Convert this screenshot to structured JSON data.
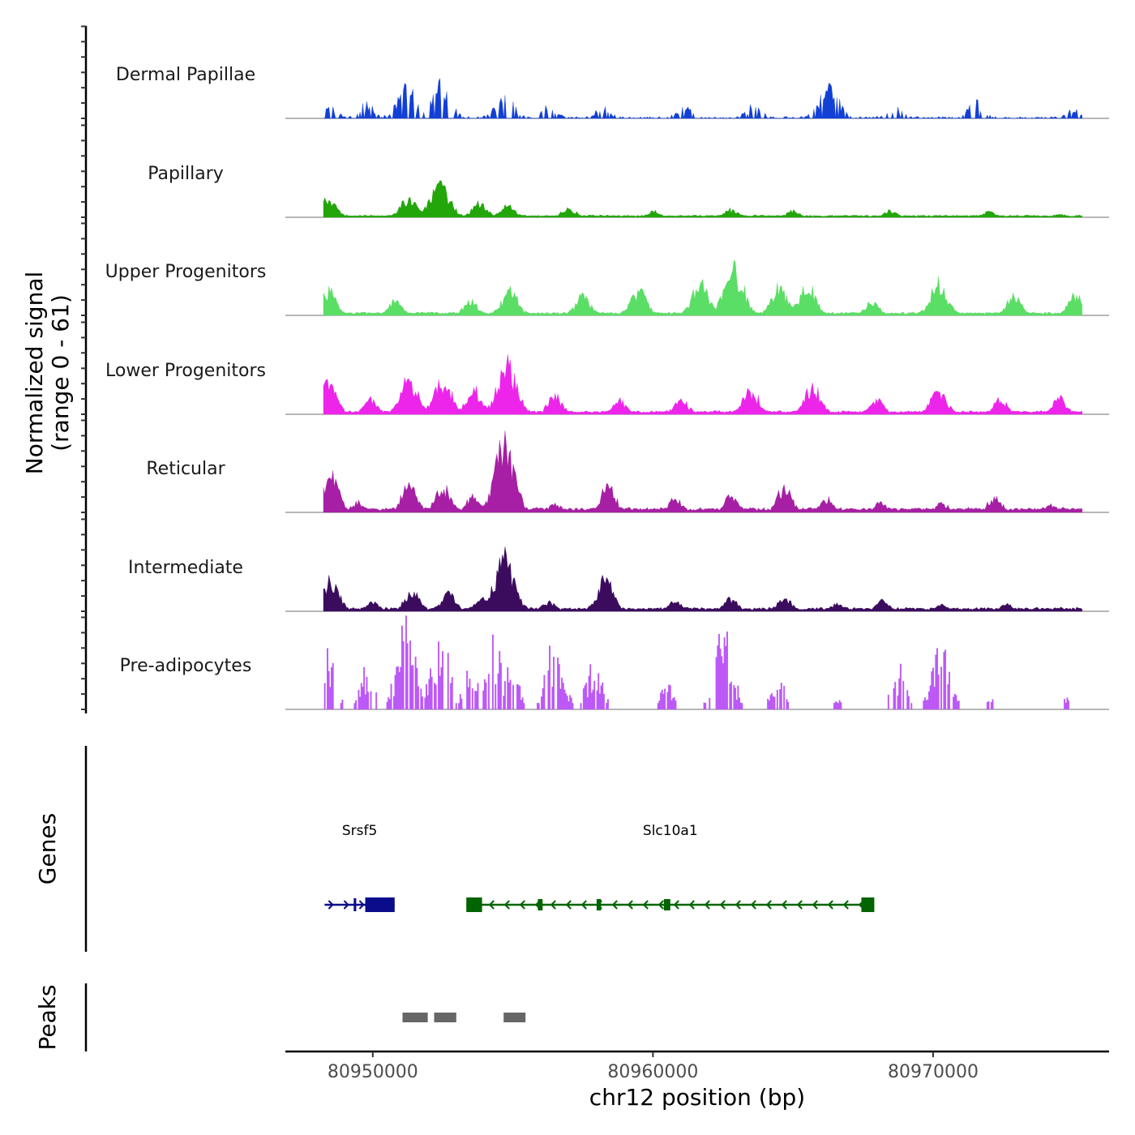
{
  "chart_data": {
    "type": "area",
    "title": "",
    "chromosome": "chr12",
    "xlabel": "chr12 position (bp)",
    "ylabel_line1": "Normalized signal",
    "ylabel_line2": "(range 0 - 61)",
    "ylim": [
      0,
      61
    ],
    "xlim": [
      80946880,
      80976280
    ],
    "data_range": [
      80948240,
      80975320
    ],
    "x_ticks": [
      80950000,
      80960000,
      80970000
    ],
    "x_tick_labels": [
      "80950000",
      "80960000",
      "80970000"
    ],
    "series": [
      {
        "name": "Dermal Papillae",
        "color": "#1240d6",
        "max": 26,
        "style": "spiky",
        "peaks": [
          [
            80948500,
            9
          ],
          [
            80949800,
            12
          ],
          [
            80951200,
            24
          ],
          [
            80952400,
            26
          ],
          [
            80954700,
            19
          ],
          [
            80956300,
            9
          ],
          [
            80958200,
            8
          ],
          [
            80961100,
            10
          ],
          [
            80963600,
            10
          ],
          [
            80966300,
            24
          ],
          [
            80968700,
            8
          ],
          [
            80971500,
            14
          ],
          [
            80975000,
            6
          ]
        ]
      },
      {
        "name": "Papillary",
        "color": "#22a60a",
        "max": 24,
        "style": "smooth",
        "peaks": [
          [
            80948400,
            14
          ],
          [
            80951300,
            16
          ],
          [
            80952400,
            24
          ],
          [
            80953800,
            11
          ],
          [
            80954800,
            9
          ],
          [
            80957000,
            7
          ],
          [
            80960000,
            5
          ],
          [
            80962800,
            6
          ],
          [
            80965000,
            5
          ],
          [
            80968500,
            5
          ],
          [
            80972000,
            4
          ],
          [
            80974500,
            2
          ]
        ]
      },
      {
        "name": "Upper Progenitors",
        "color": "#5bde65",
        "max": 36,
        "style": "smooth",
        "peaks": [
          [
            80948400,
            20
          ],
          [
            80950800,
            11
          ],
          [
            80953500,
            12
          ],
          [
            80954900,
            20
          ],
          [
            80957500,
            16
          ],
          [
            80959500,
            20
          ],
          [
            80961700,
            25
          ],
          [
            80962900,
            36
          ],
          [
            80964500,
            22
          ],
          [
            80965500,
            24
          ],
          [
            80967800,
            11
          ],
          [
            80970200,
            25
          ],
          [
            80972900,
            16
          ],
          [
            80975100,
            16
          ]
        ]
      },
      {
        "name": "Lower Progenitors",
        "color": "#ed25ea",
        "max": 39,
        "style": "smooth",
        "peaks": [
          [
            80948400,
            25
          ],
          [
            80949900,
            12
          ],
          [
            80951300,
            28
          ],
          [
            80952500,
            28
          ],
          [
            80953600,
            20
          ],
          [
            80954800,
            39
          ],
          [
            80956500,
            14
          ],
          [
            80958800,
            11
          ],
          [
            80961000,
            12
          ],
          [
            80963500,
            20
          ],
          [
            80965700,
            22
          ],
          [
            80968000,
            11
          ],
          [
            80970200,
            20
          ],
          [
            80972400,
            12
          ],
          [
            80974500,
            12
          ]
        ]
      },
      {
        "name": "Reticular",
        "color": "#a61fa4",
        "max": 53,
        "style": "smooth",
        "peaks": [
          [
            80948500,
            29
          ],
          [
            80949500,
            8
          ],
          [
            80951300,
            23
          ],
          [
            80952500,
            20
          ],
          [
            80953600,
            14
          ],
          [
            80954700,
            53
          ],
          [
            80956500,
            7
          ],
          [
            80958400,
            21
          ],
          [
            80960800,
            11
          ],
          [
            80962800,
            13
          ],
          [
            80964700,
            20
          ],
          [
            80966200,
            10
          ],
          [
            80968100,
            7
          ],
          [
            80970300,
            7
          ],
          [
            80972200,
            13
          ],
          [
            80974200,
            5
          ]
        ]
      },
      {
        "name": "Intermediate",
        "color": "#3b0c5e",
        "max": 42,
        "style": "smooth",
        "peaks": [
          [
            80948500,
            24
          ],
          [
            80950000,
            7
          ],
          [
            80951400,
            16
          ],
          [
            80952700,
            14
          ],
          [
            80953900,
            12
          ],
          [
            80954700,
            42
          ],
          [
            80956300,
            7
          ],
          [
            80958300,
            25
          ],
          [
            80960800,
            8
          ],
          [
            80962800,
            10
          ],
          [
            80964700,
            12
          ],
          [
            80966600,
            6
          ],
          [
            80968200,
            8
          ],
          [
            80970300,
            5
          ],
          [
            80972600,
            5
          ],
          [
            80974600,
            3
          ]
        ]
      },
      {
        "name": "Pre-adipocytes",
        "color": "#bb57f6",
        "max": 61,
        "style": "bars",
        "peaks": [
          [
            80948400,
            40
          ],
          [
            80949800,
            30
          ],
          [
            80951200,
            61
          ],
          [
            80952400,
            56
          ],
          [
            80953500,
            30
          ],
          [
            80954300,
            50
          ],
          [
            80954900,
            35
          ],
          [
            80956500,
            50
          ],
          [
            80957900,
            35
          ],
          [
            80960500,
            18
          ],
          [
            80962500,
            58
          ],
          [
            80964500,
            25
          ],
          [
            80966600,
            8
          ],
          [
            80968800,
            30
          ],
          [
            80970300,
            50
          ],
          [
            80972000,
            8
          ],
          [
            80974800,
            8
          ]
        ]
      }
    ],
    "genes": [
      {
        "name": "Srsf5",
        "strand": "+",
        "color": "#0b0c8c",
        "start": 80948280,
        "end": 80950780
      },
      {
        "name": "Slc10a1",
        "strand": "-",
        "color": "#006400",
        "start": 80953340,
        "end": 80967900
      }
    ],
    "peak_regions": [
      [
        80951060,
        80951960
      ],
      [
        80952190,
        80952980
      ],
      [
        80954670,
        80955450
      ]
    ],
    "panel_titles": {
      "genes": "Genes",
      "peaks": "Peaks"
    }
  }
}
